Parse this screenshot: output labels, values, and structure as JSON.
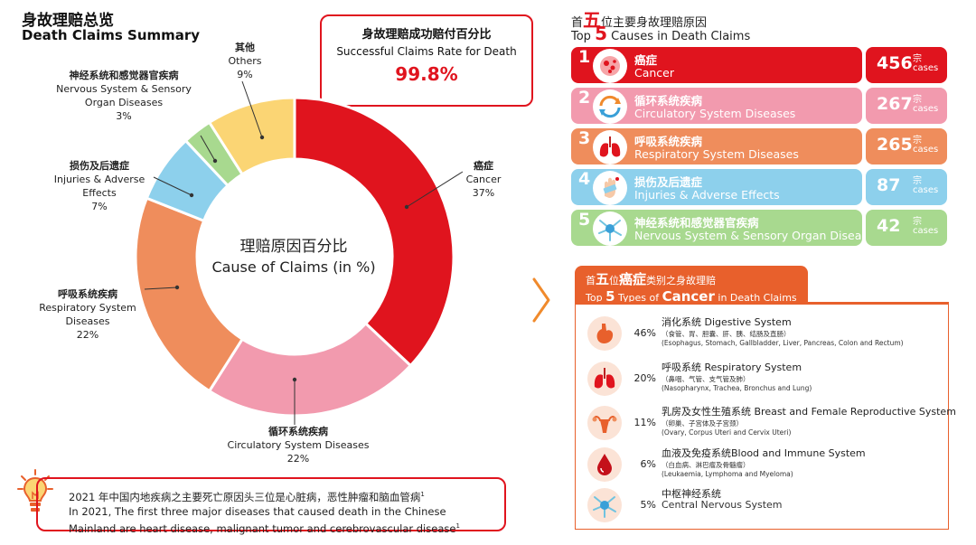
{
  "header": {
    "title_cn": "身故理赔总览",
    "title_en": "Death Claims Summary"
  },
  "success_rate": {
    "title_cn": "身故理赔成功赔付百分比",
    "title_en": "Successful Claims Rate for Death",
    "value": "99.8%"
  },
  "chart_data": {
    "type": "pie",
    "title": "理赔原因百分比",
    "subtitle": "Cause of Claims (in %)",
    "unit": "%",
    "slices": [
      {
        "label_cn": "癌症",
        "label_en": "Cancer",
        "value": 37,
        "pct_label": "37%",
        "color": "#e0141e"
      },
      {
        "label_cn": "循环系统疾病",
        "label_en": "Circulatory System Diseases",
        "value": 22,
        "pct_label": "22%",
        "color": "#f29aae"
      },
      {
        "label_cn": "呼吸系统疾病",
        "label_en": "Respiratory System Diseases",
        "value": 22,
        "pct_label": "22%",
        "color": "#ef8d5c"
      },
      {
        "label_cn": "损伤及后遗症",
        "label_en": "Injuries & Adverse Effects",
        "value": 7,
        "pct_label": "7%",
        "color": "#8dd0ec"
      },
      {
        "label_cn": "神经系统和感觉器官疾病",
        "label_en": "Nervous System & Sensory Organ Diseases",
        "value": 3,
        "pct_label": "3%",
        "color": "#a8d98f"
      },
      {
        "label_cn": "其他",
        "label_en": "Others",
        "value": 9,
        "pct_label": "9%",
        "color": "#fbd574"
      }
    ]
  },
  "note": {
    "cn": "2021 年中国内地疾病之主要死亡原因头三位是心脏病，恶性肿瘤和脑血管病",
    "en": "In 2021, The first three major diseases that caused death in the Chinese Mainland are heart disease, malignant tumor and cerebrovascular disease",
    "footnote": "1"
  },
  "top5": {
    "title_cn_pre": "首",
    "title_cn_num": "五",
    "title_cn_post": "位主要身故理赔原因",
    "title_en_pre": "Top",
    "title_en_num": "5",
    "title_en_post": "Causes in Death Claims",
    "unit_cn": "宗",
    "unit_en": "cases",
    "items": [
      {
        "rank": "1",
        "cn": "癌症",
        "en": "Cancer",
        "count": "456",
        "color": "#e0141e",
        "icon": "cancer-cell-icon"
      },
      {
        "rank": "2",
        "cn": "循环系统疾病",
        "en": "Circulatory System Diseases",
        "count": "267",
        "color": "#f29aae",
        "icon": "circulation-arrows-icon"
      },
      {
        "rank": "3",
        "cn": "呼吸系统疾病",
        "en": "Respiratory System Diseases",
        "count": "265",
        "color": "#ef8d5c",
        "icon": "lungs-icon"
      },
      {
        "rank": "4",
        "cn": "损伤及后遗症",
        "en": "Injuries & Adverse Effects",
        "count": "87",
        "color": "#8dd0ec",
        "icon": "bandaged-hand-icon"
      },
      {
        "rank": "5",
        "cn": "神经系统和感觉器官疾病",
        "en": "Nervous System & Sensory Organ Diseases",
        "count": "42",
        "color": "#a8d98f",
        "icon": "neuron-icon"
      }
    ]
  },
  "cancer_types": {
    "title_cn_pre": "首",
    "title_cn_num": "五",
    "title_cn_mid": "位",
    "title_cn_key": "癌症",
    "title_cn_post": "类别之身故理赔",
    "title_en_pre": "Top",
    "title_en_num": "5",
    "title_en_mid": "Types of",
    "title_en_key": "Cancer",
    "title_en_post": "in Death Claims",
    "items": [
      {
        "pct": "46%",
        "name": "消化系统 Digestive System",
        "sub_cn": "（食管、胃、胆囊、肝、胰、结肠及直肠）",
        "sub_en": "(Esophagus, Stomach, Gallbladder, Liver, Pancreas, Colon and Rectum)",
        "icon": "stomach-icon"
      },
      {
        "pct": "20%",
        "name": "呼吸系统 Respiratory System",
        "sub_cn": "（鼻咽、气管、支气管及肺）",
        "sub_en": "(Nasopharynx, Trachea, Bronchus and Lung)",
        "icon": "lungs-icon"
      },
      {
        "pct": "11%",
        "name": "乳房及女性生殖系统 Breast and Female Reproductive System",
        "sub_cn": "（卵巢、子宫体及子宫颈）",
        "sub_en": "(Ovary, Corpus Uteri and Cervix Uteri)",
        "icon": "uterus-icon"
      },
      {
        "pct": "6%",
        "name": "血液及免疫系统Blood and Immune System",
        "sub_cn": "（白血病、淋巴瘤及骨髓瘤）",
        "sub_en": "(Leukaemia, Lymphoma and Myeloma)",
        "icon": "blood-drop-icon"
      },
      {
        "pct": "5%",
        "name": "中枢神经系统",
        "sub_cn": "Central Nervous System",
        "sub_en": "",
        "icon": "neuron-icon"
      }
    ]
  }
}
